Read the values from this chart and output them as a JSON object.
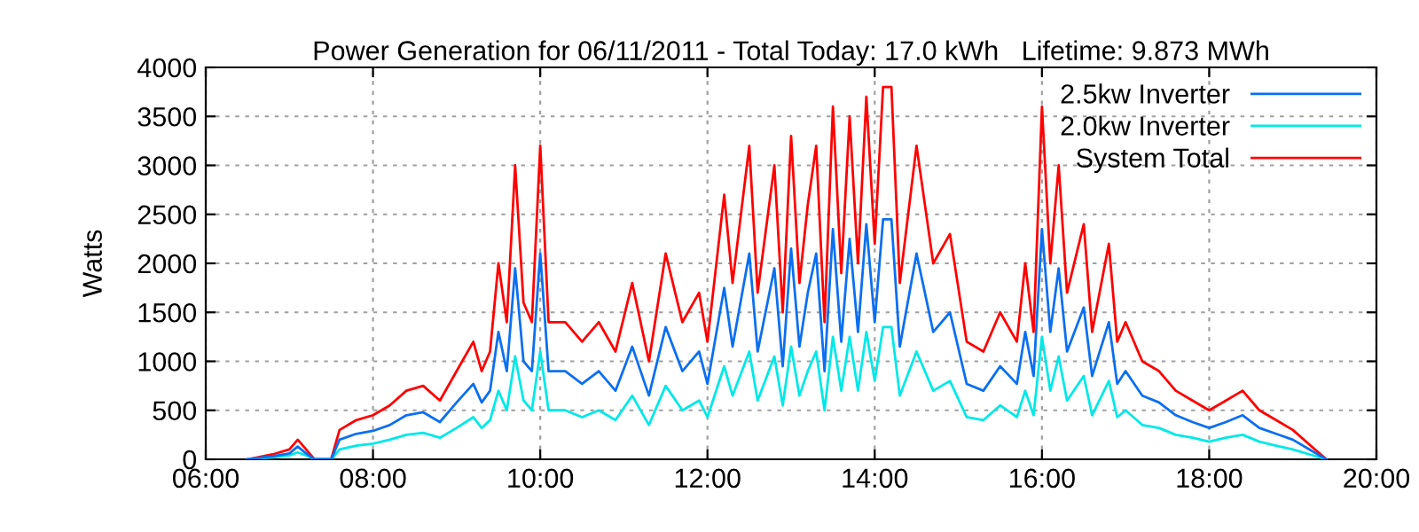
{
  "chart_data": {
    "type": "line",
    "title": "Power Generation for 06/11/2011 - Total Today: 17.0 kWh   Lifetime: 9.873 MWh",
    "ylabel": "Watts",
    "x": [
      6.5,
      6.8,
      7.0,
      7.1,
      7.2,
      7.3,
      7.5,
      7.6,
      7.8,
      8.0,
      8.2,
      8.4,
      8.6,
      8.8,
      9.0,
      9.2,
      9.3,
      9.4,
      9.5,
      9.6,
      9.7,
      9.8,
      9.9,
      10.0,
      10.1,
      10.3,
      10.5,
      10.7,
      10.9,
      11.1,
      11.3,
      11.5,
      11.7,
      11.9,
      12.0,
      12.2,
      12.3,
      12.5,
      12.6,
      12.8,
      12.9,
      13.0,
      13.1,
      13.2,
      13.3,
      13.4,
      13.5,
      13.6,
      13.7,
      13.8,
      13.9,
      14.0,
      14.1,
      14.2,
      14.3,
      14.5,
      14.7,
      14.9,
      15.1,
      15.3,
      15.5,
      15.7,
      15.8,
      15.9,
      16.0,
      16.1,
      16.2,
      16.3,
      16.5,
      16.6,
      16.8,
      16.9,
      17.0,
      17.2,
      17.4,
      17.6,
      17.8,
      18.0,
      18.2,
      18.4,
      18.6,
      18.8,
      19.0,
      19.2,
      19.4
    ],
    "series": [
      {
        "name": "2.5kw Inverter",
        "color": "#0b6ff0",
        "values": [
          0,
          30,
          60,
          130,
          60,
          0,
          0,
          200,
          260,
          290,
          350,
          450,
          480,
          380,
          580,
          770,
          580,
          700,
          1300,
          900,
          1950,
          1000,
          900,
          2100,
          900,
          900,
          770,
          900,
          700,
          1150,
          650,
          1350,
          900,
          1100,
          770,
          1750,
          1150,
          2100,
          1100,
          1950,
          950,
          2150,
          1150,
          1700,
          2100,
          900,
          2350,
          1200,
          2250,
          1300,
          2400,
          1400,
          2450,
          2450,
          1150,
          2100,
          1300,
          1500,
          770,
          700,
          950,
          770,
          1300,
          850,
          2350,
          1300,
          1950,
          1100,
          1550,
          850,
          1400,
          770,
          900,
          650,
          580,
          450,
          380,
          320,
          380,
          450,
          320,
          260,
          200,
          100,
          0
        ]
      },
      {
        "name": "2.0kw Inverter",
        "color": "#00e8e8",
        "values": [
          0,
          20,
          40,
          70,
          40,
          0,
          0,
          100,
          140,
          160,
          200,
          250,
          270,
          220,
          320,
          430,
          320,
          400,
          700,
          500,
          1050,
          600,
          500,
          1100,
          500,
          500,
          430,
          500,
          400,
          650,
          350,
          750,
          500,
          600,
          430,
          950,
          650,
          1100,
          600,
          1050,
          550,
          1150,
          650,
          900,
          1100,
          500,
          1250,
          700,
          1250,
          700,
          1300,
          800,
          1350,
          1350,
          650,
          1100,
          700,
          800,
          430,
          400,
          550,
          430,
          700,
          450,
          1250,
          700,
          1050,
          600,
          850,
          450,
          800,
          430,
          500,
          350,
          320,
          250,
          220,
          180,
          220,
          250,
          180,
          140,
          100,
          50,
          0
        ]
      },
      {
        "name": "System Total",
        "color": "#ff0000",
        "values": [
          0,
          50,
          100,
          200,
          100,
          0,
          0,
          300,
          400,
          450,
          550,
          700,
          750,
          600,
          900,
          1200,
          900,
          1100,
          2000,
          1400,
          3000,
          1600,
          1400,
          3200,
          1400,
          1400,
          1200,
          1400,
          1100,
          1800,
          1000,
          2100,
          1400,
          1700,
          1200,
          2700,
          1800,
          3200,
          1700,
          3000,
          1500,
          3300,
          1800,
          2600,
          3200,
          1400,
          3600,
          1900,
          3500,
          2000,
          3700,
          2200,
          3800,
          3800,
          1800,
          3200,
          2000,
          2300,
          1200,
          1100,
          1500,
          1200,
          2000,
          1300,
          3600,
          2000,
          3000,
          1700,
          2400,
          1300,
          2200,
          1200,
          1400,
          1000,
          900,
          700,
          600,
          500,
          600,
          700,
          500,
          400,
          300,
          150,
          0
        ]
      }
    ],
    "xlim": [
      6,
      20
    ],
    "xticks": [
      {
        "value": 6,
        "label": "06:00"
      },
      {
        "value": 8,
        "label": "08:00"
      },
      {
        "value": 10,
        "label": "10:00"
      },
      {
        "value": 12,
        "label": "12:00"
      },
      {
        "value": 14,
        "label": "14:00"
      },
      {
        "value": 16,
        "label": "16:00"
      },
      {
        "value": 18,
        "label": "18:00"
      },
      {
        "value": 20,
        "label": "20:00"
      }
    ],
    "ylim": [
      0,
      4000
    ],
    "yticks": [
      0,
      500,
      1000,
      1500,
      2000,
      2500,
      3000,
      3500,
      4000
    ],
    "grid": true,
    "legend": "top right",
    "line_style": "solid"
  }
}
